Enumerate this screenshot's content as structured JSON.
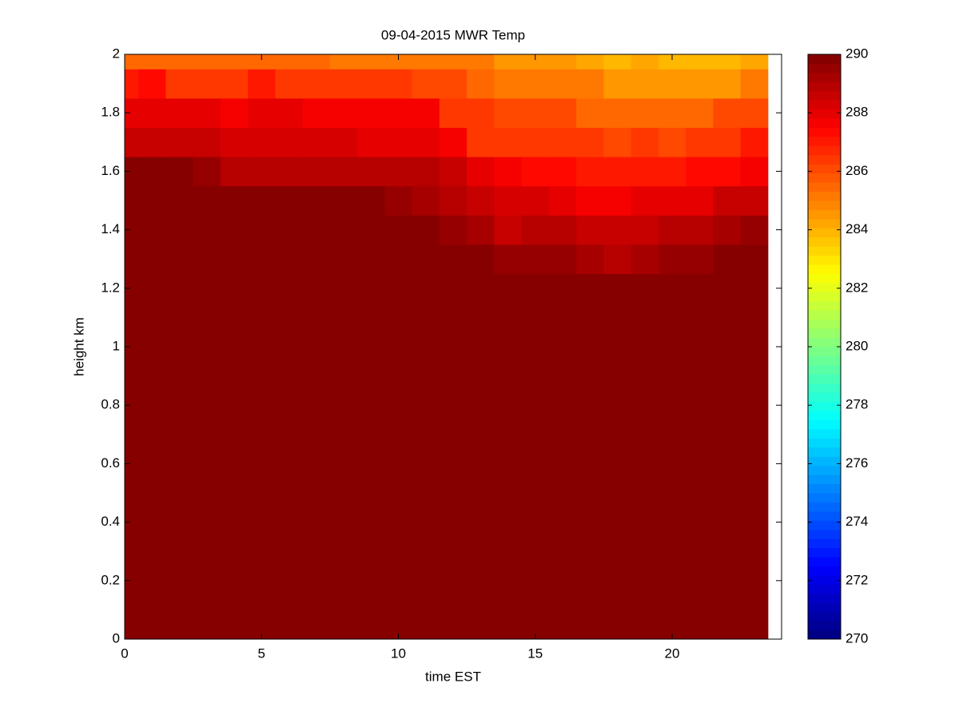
{
  "chart_data": {
    "type": "heatmap",
    "title": "09-04-2015 MWR Temp",
    "xlabel": "time EST",
    "ylabel": "height km",
    "colormap": "jet",
    "x": [
      0,
      1,
      2,
      3,
      4,
      5,
      6,
      7,
      8,
      9,
      10,
      11,
      12,
      13,
      14,
      15,
      16,
      17,
      18,
      19,
      20,
      21,
      22,
      23
    ],
    "y": [
      0,
      0.1,
      0.2,
      0.3,
      0.4,
      0.5,
      0.6,
      0.7,
      0.8,
      0.9,
      1,
      1.1,
      1.2,
      1.3,
      1.4,
      1.5,
      1.6,
      1.7,
      1.8,
      1.9,
      2
    ],
    "z": [
      [
        290,
        290,
        290,
        290,
        290,
        290,
        290,
        290,
        290,
        290,
        290,
        290,
        290,
        290,
        290,
        290,
        290,
        290,
        290,
        290,
        290,
        290,
        290,
        290
      ],
      [
        290,
        290,
        290,
        290,
        290,
        290,
        290,
        290,
        290,
        290,
        290,
        290,
        290,
        290,
        290,
        290,
        290,
        290,
        290,
        290,
        290,
        290,
        290,
        290
      ],
      [
        290,
        290,
        290,
        290,
        290,
        290,
        290,
        290,
        290,
        290,
        290,
        290,
        290,
        290,
        290,
        290,
        290,
        290,
        290,
        290,
        290,
        290,
        290,
        290
      ],
      [
        290,
        290,
        290,
        290,
        290,
        290,
        290,
        290,
        290,
        290,
        290,
        290,
        290,
        290,
        290,
        290,
        290,
        290,
        290,
        290,
        290,
        290,
        290,
        290
      ],
      [
        290,
        290,
        290,
        290,
        290,
        290,
        290,
        290,
        290,
        290,
        290,
        290,
        290,
        290,
        290,
        290,
        290,
        290,
        290,
        290,
        290,
        290,
        290,
        290
      ],
      [
        290,
        290,
        290,
        290,
        290,
        290,
        290,
        290,
        290,
        290,
        290,
        290,
        290,
        290,
        290,
        290,
        290,
        290,
        290,
        290,
        290,
        290,
        290,
        290
      ],
      [
        290,
        290,
        290,
        290,
        290,
        290,
        290,
        290,
        290,
        290,
        290,
        290,
        290,
        290,
        290,
        290,
        290,
        290,
        290,
        290,
        290,
        290,
        290,
        290
      ],
      [
        290,
        290,
        290,
        290,
        290,
        290,
        290,
        290,
        290,
        290,
        290,
        290,
        290,
        290,
        290,
        290,
        290,
        290,
        290,
        290,
        290,
        290,
        290,
        290
      ],
      [
        290,
        290,
        290,
        290,
        290,
        290,
        290,
        290,
        290,
        290,
        290,
        290,
        290,
        290,
        290,
        290,
        290,
        290,
        290,
        290,
        290,
        290,
        290,
        290
      ],
      [
        290,
        290,
        290,
        290,
        290,
        290,
        290,
        290,
        290,
        290,
        290,
        290,
        290,
        290,
        290,
        290,
        290,
        290,
        290,
        290,
        290,
        290,
        290,
        290
      ],
      [
        290,
        290,
        290,
        290,
        290,
        290,
        290,
        290,
        290,
        290,
        290,
        290,
        290,
        290,
        290,
        290,
        290,
        290,
        290,
        290,
        290,
        290,
        290,
        290
      ],
      [
        290,
        290,
        290,
        290,
        290,
        290,
        290,
        290,
        290,
        290,
        290,
        290,
        290,
        290,
        290,
        290,
        290,
        290,
        290,
        290,
        290,
        290,
        290,
        290
      ],
      [
        290,
        290,
        290,
        290,
        290,
        290,
        290,
        290,
        290,
        290,
        290,
        290,
        290,
        290,
        290,
        290,
        290,
        290,
        289.8,
        290,
        290,
        290,
        290,
        290
      ],
      [
        290,
        290,
        290,
        290,
        290,
        290,
        290,
        290,
        290,
        290,
        290,
        290,
        290,
        290,
        289.5,
        289.5,
        289.5,
        289.2,
        289,
        289.3,
        289.5,
        289.5,
        290,
        290
      ],
      [
        290,
        290,
        290,
        290,
        290,
        290,
        290,
        290,
        290,
        290,
        290,
        290,
        289.5,
        289.2,
        288.5,
        289,
        288.8,
        288.5,
        288.5,
        288.5,
        289,
        289,
        289.3,
        289.5
      ],
      [
        290,
        290,
        290,
        290,
        290,
        290,
        290,
        290,
        290,
        290,
        289.5,
        289.3,
        289,
        288.5,
        288.3,
        288.3,
        288,
        287.5,
        287.5,
        288,
        288,
        288,
        288.5,
        288.7
      ],
      [
        290,
        290,
        290,
        289.5,
        289,
        289,
        289,
        289,
        289,
        289,
        289,
        288.8,
        288.5,
        288,
        287.5,
        287.3,
        287.3,
        287,
        287,
        287,
        287,
        287.3,
        287.3,
        287.5
      ],
      [
        288.5,
        288.5,
        288.5,
        288.5,
        288.3,
        288.3,
        288.3,
        288.3,
        288.3,
        288,
        288,
        288,
        287.5,
        286.5,
        286.5,
        286.5,
        286.5,
        286.3,
        286,
        286.5,
        286,
        286.3,
        286.3,
        287
      ],
      [
        288,
        288,
        288,
        288,
        287.5,
        288,
        288,
        287.5,
        287.5,
        287.5,
        287.5,
        287.5,
        286.5,
        286.3,
        286,
        286,
        286,
        285.5,
        285.5,
        285.5,
        285.5,
        285.5,
        286,
        286
      ],
      [
        287,
        287.3,
        286.5,
        286.5,
        286.5,
        287,
        286.5,
        286.5,
        286.5,
        286.5,
        286.5,
        286,
        286,
        285.5,
        285,
        285,
        285,
        285,
        284.5,
        284.5,
        284.5,
        284.5,
        284.5,
        285
      ],
      [
        285.5,
        285.5,
        285.5,
        285.5,
        285.5,
        285.5,
        285.5,
        285.5,
        285.3,
        285.3,
        285.3,
        285.3,
        285,
        285,
        284.5,
        284.5,
        284.5,
        284.3,
        283.8,
        284.3,
        284,
        284,
        284,
        284.3
      ]
    ],
    "xlim": [
      0,
      24
    ],
    "xticks": [
      0,
      5,
      10,
      15,
      20
    ],
    "ylim": [
      0,
      2
    ],
    "yticks": [
      0,
      0.2,
      0.4,
      0.6,
      0.8,
      1,
      1.2,
      1.4,
      1.6,
      1.8,
      2
    ],
    "clim": [
      270,
      290
    ],
    "cticks": [
      270,
      272,
      274,
      276,
      278,
      280,
      282,
      284,
      286,
      288,
      290
    ]
  }
}
